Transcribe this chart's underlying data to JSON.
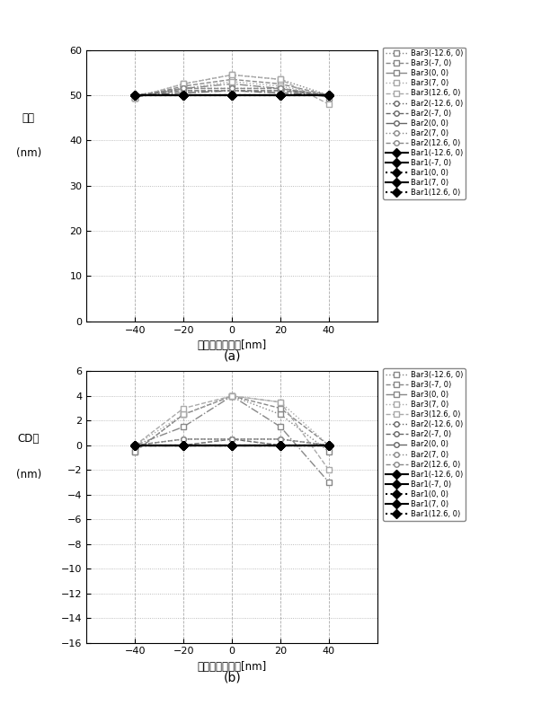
{
  "x": [
    -40,
    -20,
    0,
    20,
    40
  ],
  "panel_a": {
    "ylabel1": "線幅",
    "ylabel2": "(nm)",
    "xlabel": "デフォーカス量[nm]",
    "ylim": [
      0,
      60
    ],
    "yticks": [
      0,
      10,
      20,
      30,
      40,
      50,
      60
    ],
    "xlim": [
      -60,
      60
    ],
    "xticks": [
      -40,
      -20,
      0,
      20,
      40
    ],
    "label": "(a)",
    "series": [
      {
        "name": "Bar3(-12.6, 0)",
        "y": [
          49.5,
          52.5,
          54.5,
          53.5,
          50.0
        ],
        "color": "#888888",
        "ls": "dotted",
        "marker": "s",
        "mfc": "white",
        "lw": 1.0,
        "ms": 4
      },
      {
        "name": "Bar3(-7, 0)",
        "y": [
          49.5,
          52.0,
          53.5,
          52.5,
          50.0
        ],
        "color": "#888888",
        "ls": "dashed",
        "marker": "s",
        "mfc": "white",
        "lw": 1.0,
        "ms": 4
      },
      {
        "name": "Bar3(0, 0)",
        "y": [
          49.5,
          51.5,
          52.5,
          51.5,
          49.5
        ],
        "color": "#888888",
        "ls": "dashdot",
        "marker": "s",
        "mfc": "white",
        "lw": 1.0,
        "ms": 4
      },
      {
        "name": "Bar3(7, 0)",
        "y": [
          49.5,
          51.5,
          53.0,
          52.0,
          50.0
        ],
        "color": "#aaaaaa",
        "ls": "dotted",
        "marker": "s",
        "mfc": "white",
        "lw": 1.0,
        "ms": 4
      },
      {
        "name": "Bar3(12.6, 0)",
        "y": [
          49.5,
          52.5,
          54.5,
          53.5,
          48.0
        ],
        "color": "#aaaaaa",
        "ls": "dashed",
        "marker": "s",
        "mfc": "white",
        "lw": 1.0,
        "ms": 4
      },
      {
        "name": "Bar2(-12.6, 0)",
        "y": [
          50.0,
          51.5,
          51.5,
          51.5,
          50.0
        ],
        "color": "#666666",
        "ls": "dotted",
        "marker": "o",
        "mfc": "white",
        "lw": 1.0,
        "ms": 4
      },
      {
        "name": "Bar2(-7, 0)",
        "y": [
          50.0,
          51.0,
          51.0,
          51.0,
          50.0
        ],
        "color": "#666666",
        "ls": "dashed",
        "marker": "o",
        "mfc": "white",
        "lw": 1.0,
        "ms": 4
      },
      {
        "name": "Bar2(0, 0)",
        "y": [
          50.0,
          50.5,
          51.0,
          50.5,
          50.0
        ],
        "color": "#666666",
        "ls": "dashdot",
        "marker": "o",
        "mfc": "white",
        "lw": 1.0,
        "ms": 4
      },
      {
        "name": "Bar2(7, 0)",
        "y": [
          50.0,
          51.0,
          51.0,
          51.0,
          50.0
        ],
        "color": "#888888",
        "ls": "dotted",
        "marker": "o",
        "mfc": "white",
        "lw": 1.0,
        "ms": 4
      },
      {
        "name": "Bar2(12.6, 0)",
        "y": [
          50.0,
          51.5,
          51.5,
          51.5,
          50.0
        ],
        "color": "#888888",
        "ls": "dashed",
        "marker": "o",
        "mfc": "white",
        "lw": 1.0,
        "ms": 4
      },
      {
        "name": "Bar1(-12.6, 0)",
        "y": [
          50.0,
          50.0,
          50.0,
          50.0,
          50.0
        ],
        "color": "#000000",
        "ls": "solid",
        "marker": "D",
        "mfc": "#000000",
        "lw": 1.5,
        "ms": 5
      },
      {
        "name": "Bar1(-7, 0)",
        "y": [
          50.0,
          50.0,
          50.0,
          50.0,
          50.0
        ],
        "color": "#000000",
        "ls": "solid",
        "marker": "D",
        "mfc": "#000000",
        "lw": 1.5,
        "ms": 5
      },
      {
        "name": "Bar1(0, 0)",
        "y": [
          50.0,
          50.0,
          50.0,
          50.0,
          50.0
        ],
        "color": "#000000",
        "ls": "dotted",
        "marker": "D",
        "mfc": "#000000",
        "lw": 1.5,
        "ms": 5
      },
      {
        "name": "Bar1(7, 0)",
        "y": [
          50.0,
          50.0,
          50.0,
          50.0,
          50.0
        ],
        "color": "#000000",
        "ls": "solid",
        "marker": "D",
        "mfc": "#000000",
        "lw": 1.5,
        "ms": 5
      },
      {
        "name": "Bar1(12.6, 0)",
        "y": [
          50.0,
          50.0,
          50.0,
          50.0,
          50.0
        ],
        "color": "#000000",
        "ls": "dotted",
        "marker": "D",
        "mfc": "#000000",
        "lw": 1.5,
        "ms": 5
      }
    ]
  },
  "panel_b": {
    "ylabel1": "CD差",
    "ylabel2": "(nm)",
    "xlabel": "デフォーカス量[nm]",
    "ylim": [
      -16,
      6
    ],
    "yticks": [
      -16,
      -14,
      -12,
      -10,
      -8,
      -6,
      -4,
      -2,
      0,
      2,
      4,
      6
    ],
    "xlim": [
      -60,
      60
    ],
    "xticks": [
      -40,
      -20,
      0,
      20,
      40
    ],
    "label": "(b)",
    "series": [
      {
        "name": "Bar3(-12.6, 0)",
        "y": [
          -0.5,
          2.5,
          4.0,
          2.5,
          -0.5
        ],
        "color": "#888888",
        "ls": "dotted",
        "marker": "s",
        "mfc": "white",
        "lw": 1.0,
        "ms": 4
      },
      {
        "name": "Bar3(-7, 0)",
        "y": [
          -0.5,
          2.5,
          4.0,
          3.0,
          0.0
        ],
        "color": "#888888",
        "ls": "dashed",
        "marker": "s",
        "mfc": "white",
        "lw": 1.0,
        "ms": 4
      },
      {
        "name": "Bar3(0, 0)",
        "y": [
          0.0,
          1.5,
          4.0,
          1.5,
          -3.0
        ],
        "color": "#888888",
        "ls": "dashdot",
        "marker": "s",
        "mfc": "white",
        "lw": 1.0,
        "ms": 4
      },
      {
        "name": "Bar3(7, 0)",
        "y": [
          0.0,
          2.5,
          4.0,
          3.5,
          0.0
        ],
        "color": "#aaaaaa",
        "ls": "dotted",
        "marker": "s",
        "mfc": "white",
        "lw": 1.0,
        "ms": 4
      },
      {
        "name": "Bar3(12.6, 0)",
        "y": [
          0.0,
          3.0,
          4.0,
          3.5,
          -2.0
        ],
        "color": "#aaaaaa",
        "ls": "dashed",
        "marker": "s",
        "mfc": "white",
        "lw": 1.0,
        "ms": 4
      },
      {
        "name": "Bar2(-12.6, 0)",
        "y": [
          0.0,
          0.5,
          0.5,
          0.5,
          0.0
        ],
        "color": "#666666",
        "ls": "dotted",
        "marker": "o",
        "mfc": "white",
        "lw": 1.0,
        "ms": 4
      },
      {
        "name": "Bar2(-7, 0)",
        "y": [
          0.0,
          0.0,
          0.5,
          0.0,
          0.0
        ],
        "color": "#666666",
        "ls": "dashed",
        "marker": "o",
        "mfc": "white",
        "lw": 1.0,
        "ms": 4
      },
      {
        "name": "Bar2(0, 0)",
        "y": [
          0.0,
          0.0,
          0.0,
          0.0,
          0.0
        ],
        "color": "#666666",
        "ls": "dashdot",
        "marker": "o",
        "mfc": "white",
        "lw": 1.0,
        "ms": 4
      },
      {
        "name": "Bar2(7, 0)",
        "y": [
          0.0,
          0.0,
          0.5,
          0.0,
          0.0
        ],
        "color": "#888888",
        "ls": "dotted",
        "marker": "o",
        "mfc": "white",
        "lw": 1.0,
        "ms": 4
      },
      {
        "name": "Bar2(12.6, 0)",
        "y": [
          0.0,
          0.5,
          0.5,
          0.5,
          0.0
        ],
        "color": "#888888",
        "ls": "dashed",
        "marker": "o",
        "mfc": "white",
        "lw": 1.0,
        "ms": 4
      },
      {
        "name": "Bar1(-12.6, 0)",
        "y": [
          0.0,
          0.0,
          0.0,
          0.0,
          0.0
        ],
        "color": "#000000",
        "ls": "solid",
        "marker": "D",
        "mfc": "#000000",
        "lw": 1.5,
        "ms": 5
      },
      {
        "name": "Bar1(-7, 0)",
        "y": [
          0.0,
          0.0,
          0.0,
          0.0,
          0.0
        ],
        "color": "#000000",
        "ls": "solid",
        "marker": "D",
        "mfc": "#000000",
        "lw": 1.5,
        "ms": 5
      },
      {
        "name": "Bar1(0, 0)",
        "y": [
          0.0,
          0.0,
          0.0,
          0.0,
          0.0
        ],
        "color": "#000000",
        "ls": "dotted",
        "marker": "D",
        "mfc": "#000000",
        "lw": 1.5,
        "ms": 5
      },
      {
        "name": "Bar1(7, 0)",
        "y": [
          0.0,
          0.0,
          0.0,
          0.0,
          0.0
        ],
        "color": "#000000",
        "ls": "solid",
        "marker": "D",
        "mfc": "#000000",
        "lw": 1.5,
        "ms": 5
      },
      {
        "name": "Bar1(12.6, 0)",
        "y": [
          0.0,
          0.0,
          0.0,
          0.0,
          0.0
        ],
        "color": "#000000",
        "ls": "dotted",
        "marker": "D",
        "mfc": "#000000",
        "lw": 1.5,
        "ms": 5
      }
    ]
  },
  "legend_entries": [
    {
      "label": "Bar3(-12.6, 0)",
      "color": "#888888",
      "ls": "dotted",
      "marker": "s",
      "mfc": "white",
      "lw": 1.0,
      "ms": 4
    },
    {
      "label": "Bar3(-7, 0)",
      "color": "#888888",
      "ls": "dashed",
      "marker": "s",
      "mfc": "white",
      "lw": 1.0,
      "ms": 4
    },
    {
      "label": "Bar3(0, 0)",
      "color": "#888888",
      "ls": "dashdot",
      "marker": "s",
      "mfc": "white",
      "lw": 1.0,
      "ms": 4
    },
    {
      "label": "Bar3(7, 0)",
      "color": "#aaaaaa",
      "ls": "dotted",
      "marker": "s",
      "mfc": "white",
      "lw": 1.0,
      "ms": 4
    },
    {
      "label": "Bar3(12.6, 0)",
      "color": "#aaaaaa",
      "ls": "dashed",
      "marker": "s",
      "mfc": "white",
      "lw": 1.0,
      "ms": 4
    },
    {
      "label": "Bar2(-12.6, 0)",
      "color": "#666666",
      "ls": "dotted",
      "marker": "o",
      "mfc": "white",
      "lw": 1.0,
      "ms": 4
    },
    {
      "label": "Bar2(-7, 0)",
      "color": "#666666",
      "ls": "dashed",
      "marker": "o",
      "mfc": "white",
      "lw": 1.0,
      "ms": 4
    },
    {
      "label": "Bar2(0, 0)",
      "color": "#666666",
      "ls": "dashdot",
      "marker": "o",
      "mfc": "white",
      "lw": 1.0,
      "ms": 4
    },
    {
      "label": "Bar2(7, 0)",
      "color": "#888888",
      "ls": "dotted",
      "marker": "o",
      "mfc": "white",
      "lw": 1.0,
      "ms": 4
    },
    {
      "label": "Bar2(12.6, 0)",
      "color": "#888888",
      "ls": "dashed",
      "marker": "o",
      "mfc": "white",
      "lw": 1.0,
      "ms": 4
    },
    {
      "label": "Bar1(-12.6, 0)",
      "color": "#000000",
      "ls": "solid",
      "marker": "D",
      "mfc": "#000000",
      "lw": 1.5,
      "ms": 5
    },
    {
      "label": "Bar1(-7, 0)",
      "color": "#000000",
      "ls": "solid",
      "marker": "D",
      "mfc": "#000000",
      "lw": 1.5,
      "ms": 5
    },
    {
      "label": "Bar1(0, 0)",
      "color": "#000000",
      "ls": "dotted",
      "marker": "D",
      "mfc": "#000000",
      "lw": 1.5,
      "ms": 5
    },
    {
      "label": "Bar1(7, 0)",
      "color": "#000000",
      "ls": "solid",
      "marker": "D",
      "mfc": "#000000",
      "lw": 1.5,
      "ms": 5
    },
    {
      "label": "Bar1(12.6, 0)",
      "color": "#000000",
      "ls": "dotted",
      "marker": "D",
      "mfc": "#000000",
      "lw": 1.5,
      "ms": 5
    }
  ],
  "fig_width": 6.22,
  "fig_height": 7.95,
  "dpi": 100
}
